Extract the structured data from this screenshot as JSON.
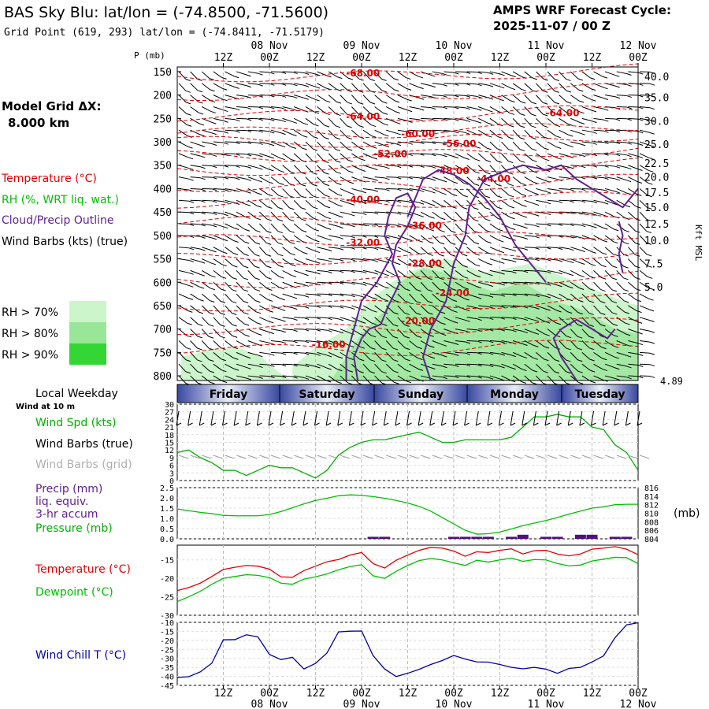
{
  "header": {
    "title": "BAS Sky Blu:  lat/lon = (-74.8500, -71.5600)",
    "subtitle": "Grid Point (619, 293) lat/lon = (-74.8411, -71.5179)",
    "cycle_label": "AMPS WRF Forecast Cycle:",
    "cycle_value": "2025-11-07 / 00  Z"
  },
  "legend": {
    "grid_label": "Model Grid ΔX:",
    "grid_value": "8.000 km",
    "temperature": "Temperature (°C)",
    "rh": "RH (%, WRT liq. wat.)",
    "cloud": "Cloud/Precip Outline",
    "wind": "Wind Barbs (kts) (true)",
    "rh70": "RH > 70%",
    "rh80": "RH > 80%",
    "rh90": "RH > 90%",
    "rh_colors": [
      "#ccf5cc",
      "#99e699",
      "#33d633"
    ]
  },
  "time_axis": {
    "top_dates": [
      "08 Nov",
      "09 Nov",
      "10 Nov",
      "11 Nov",
      "12 Nov"
    ],
    "top_hours": [
      "12Z",
      "00Z",
      "12Z",
      "00Z",
      "12Z",
      "00Z",
      "12Z",
      "00Z",
      "12Z",
      "00Z"
    ],
    "bottom_hours": [
      "12Z",
      "00Z",
      "12Z",
      "00Z",
      "12Z",
      "00Z",
      "12Z",
      "00Z",
      "12Z",
      "00Z"
    ],
    "bottom_dates": [
      "08 Nov",
      "09 Nov",
      "10 Nov",
      "11 Nov",
      "12 Nov"
    ]
  },
  "weekday": {
    "label": "Local Weekday",
    "sublabel": "Wind at 10 m",
    "days": [
      "Friday",
      "Saturday",
      "Sunday",
      "Monday",
      "Tuesday"
    ]
  },
  "panel_labels": {
    "p_axis": "P (mb)",
    "kft": "Kft MSL",
    "wind_spd": "Wind Spd (kts)",
    "wind_barbs_true": "Wind Barbs (true)",
    "wind_barbs_grid": "Wind Barbs (grid)",
    "precip": "Precip (mm)",
    "precip2": "liq. equiv.",
    "precip3": "3-hr accum",
    "pressure": "Pressure (mb)",
    "pressure_unit": "(mb)",
    "temperature": "Temperature (°C)",
    "dewpoint": "Dewpoint (°C)",
    "wind_chill": "Wind Chill T (°C)"
  },
  "colors": {
    "temp": "#e00000",
    "dew": "#00c000",
    "cloud": "#602090",
    "wind": "#00b000",
    "chill": "#0000a0",
    "precip": "#501080",
    "grid_barb": "#a0a0a0"
  },
  "chart_data": [
    {
      "type": "heatmap",
      "title": "Vertical cross-section",
      "ylabel": "P (mb)",
      "pressure_ticks": [
        150,
        200,
        250,
        300,
        350,
        400,
        450,
        500,
        550,
        600,
        650,
        700,
        750,
        800
      ],
      "kft_ticks": [
        "40.0",
        "35.0",
        "30.0",
        "25.0",
        "22.5",
        "20.0",
        "17.5",
        "15.0",
        "12.5",
        "10.0",
        "7.5",
        "5.0"
      ],
      "kft_extra": "4.89",
      "temp_labels": [
        {
          "t": 27,
          "p": 160,
          "text": "-68.00"
        },
        {
          "t": 27,
          "p": 253,
          "text": "-64.00"
        },
        {
          "t": 35,
          "p": 290,
          "text": "-60.00"
        },
        {
          "t": 41,
          "p": 311,
          "text": "-56.00"
        },
        {
          "t": 31,
          "p": 333,
          "text": "-52.00"
        },
        {
          "t": 40,
          "p": 369,
          "text": "-48.00"
        },
        {
          "t": 46,
          "p": 386,
          "text": "-44.00"
        },
        {
          "t": 27,
          "p": 430,
          "text": "-40.00"
        },
        {
          "t": 36,
          "p": 486,
          "text": "-36.00"
        },
        {
          "t": 27,
          "p": 522,
          "text": "-32.00"
        },
        {
          "t": 36,
          "p": 567,
          "text": "-28.00"
        },
        {
          "t": 40,
          "p": 630,
          "text": "-24.00"
        },
        {
          "t": 35,
          "p": 690,
          "text": "-20.00"
        },
        {
          "t": 22,
          "p": 740,
          "text": "-16.00"
        },
        {
          "t": 56,
          "p": 245,
          "text": "-64.00"
        }
      ]
    },
    {
      "type": "line",
      "title": "Wind Spd (kts)",
      "yticks": [
        0,
        3,
        6,
        9,
        12,
        15,
        18,
        21,
        24,
        27,
        30
      ],
      "x_hours": [
        0,
        3,
        6,
        9,
        12,
        15,
        18,
        21,
        24,
        27,
        30,
        33,
        36,
        39,
        42,
        45,
        48,
        51,
        54,
        57,
        60,
        63,
        66,
        69,
        72,
        75,
        78,
        81,
        84,
        87,
        90,
        93,
        96,
        99,
        102,
        105,
        108,
        111,
        114,
        117,
        120
      ],
      "values": [
        11,
        12,
        9,
        7,
        4,
        4,
        2,
        4,
        6,
        5,
        5,
        3,
        1,
        4,
        10,
        13,
        15,
        16,
        16,
        17,
        18,
        19,
        17,
        15,
        15,
        16,
        16,
        16,
        16,
        17,
        21,
        25,
        25,
        26,
        25,
        25,
        21,
        20,
        14,
        11,
        4
      ]
    },
    {
      "type": "bar",
      "title": "Precip (mm) / Pressure (mb)",
      "yticks": [
        "0.0",
        "0.5",
        "1.0",
        "1.5",
        "2.0",
        "2.5"
      ],
      "pticks": [
        "804",
        "806",
        "808",
        "810",
        "812",
        "814",
        "816"
      ],
      "precip": [
        {
          "h": 51,
          "v": 0.1
        },
        {
          "h": 54,
          "v": 0.1
        },
        {
          "h": 72,
          "v": 0.1
        },
        {
          "h": 75,
          "v": 0.1
        },
        {
          "h": 78,
          "v": 0.1
        },
        {
          "h": 81,
          "v": 0.1
        },
        {
          "h": 87,
          "v": 0.1
        },
        {
          "h": 90,
          "v": 0.2
        },
        {
          "h": 96,
          "v": 0.1
        },
        {
          "h": 99,
          "v": 0.1
        },
        {
          "h": 105,
          "v": 0.2
        },
        {
          "h": 108,
          "v": 0.2
        },
        {
          "h": 114,
          "v": 0.1
        },
        {
          "h": 117,
          "v": 0.1
        }
      ],
      "pressure": [
        811,
        810.6,
        810.2,
        809.9,
        809.5,
        809.4,
        809.4,
        809.4,
        809.7,
        810.4,
        811.3,
        812.2,
        813,
        813.5,
        814.1,
        814.3,
        814.2,
        813.9,
        813.5,
        813,
        812.4,
        811.6,
        810.5,
        809,
        807.5,
        806,
        805.1,
        805.2,
        805.6,
        806.3,
        807.1,
        807.7,
        808.3,
        809,
        809.8,
        810.5,
        811.2,
        811.5,
        812,
        812.1,
        812.1
      ]
    },
    {
      "type": "line",
      "title": "Temperature / Dewpoint (°C)",
      "yticks": [
        -30,
        -25,
        -20,
        -15
      ],
      "temperature": [
        -23.3,
        -22.5,
        -21.3,
        -19.5,
        -17.6,
        -17,
        -16.5,
        -16.7,
        -17.5,
        -19.6,
        -19.7,
        -17.9,
        -16.7,
        -15.5,
        -14.9,
        -13.7,
        -13,
        -16,
        -17.2,
        -15.1,
        -13.7,
        -12.4,
        -11.6,
        -11.8,
        -12.6,
        -14,
        -12.8,
        -13,
        -12.4,
        -12,
        -13.4,
        -12.5,
        -12.4,
        -13.4,
        -13.9,
        -13.4,
        -12.1,
        -11.8,
        -11.4,
        -12.1,
        -13.6
      ],
      "dewpoint": [
        -26.3,
        -25,
        -23.5,
        -21.6,
        -20,
        -19.5,
        -19,
        -19.2,
        -19.8,
        -21.3,
        -21.6,
        -20.2,
        -19.6,
        -18.8,
        -17.7,
        -16.8,
        -16.3,
        -19.3,
        -20,
        -18.1,
        -16.5,
        -15.2,
        -14.6,
        -15,
        -15.8,
        -16.5,
        -15.1,
        -15.6,
        -15,
        -14.5,
        -15.4,
        -14.9,
        -15,
        -16,
        -16.6,
        -16.4,
        -15.3,
        -14.8,
        -14.3,
        -14.4,
        -16
      ]
    },
    {
      "type": "line",
      "title": "Wind Chill T (°C)",
      "yticks": [
        -45,
        -40,
        -35,
        -30,
        -25,
        -20,
        -15,
        -10
      ],
      "values": [
        -40.6,
        -40.2,
        -37.5,
        -32.7,
        -19.7,
        -19.6,
        -16.9,
        -18.1,
        -27.8,
        -30.7,
        -29.4,
        -35.9,
        -32.8,
        -27,
        -15.3,
        -14.9,
        -14.8,
        -28.5,
        -35.9,
        -40.1,
        -38.3,
        -36.1,
        -33.4,
        -31.2,
        -28.4,
        -30.4,
        -32,
        -32.1,
        -33.4,
        -35,
        -35.8,
        -35,
        -36,
        -38.3,
        -35.6,
        -35,
        -32,
        -28.6,
        -18.5,
        -11.4,
        -10.2
      ]
    }
  ]
}
